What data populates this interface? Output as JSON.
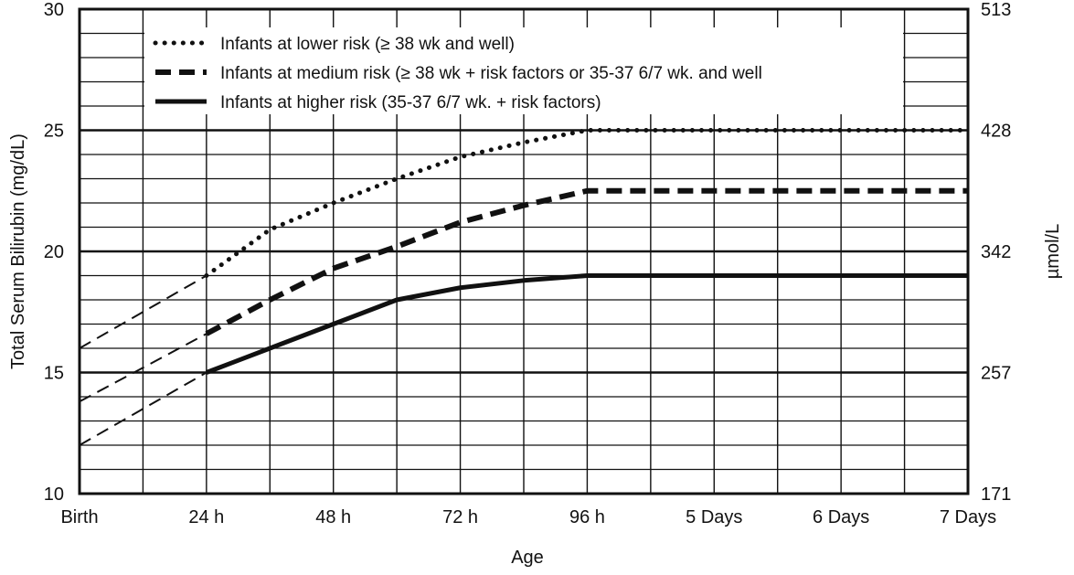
{
  "chart_data": {
    "type": "line",
    "title": "",
    "xlabel": "Age",
    "ylabel": "Total Serum Bilirubin (mg/dL)",
    "ylabel_right": "µmol/L",
    "x_unit": "hours after birth",
    "xlim": [
      0,
      168
    ],
    "ylim": [
      10,
      30
    ],
    "x_ticks": [
      {
        "x": 0,
        "label": "Birth"
      },
      {
        "x": 24,
        "label": "24 h"
      },
      {
        "x": 48,
        "label": "48 h"
      },
      {
        "x": 72,
        "label": "72 h"
      },
      {
        "x": 96,
        "label": "96 h"
      },
      {
        "x": 120,
        "label": "5 Days"
      },
      {
        "x": 144,
        "label": "6 Days"
      },
      {
        "x": 168,
        "label": "7 Days"
      }
    ],
    "y_ticks_left": [
      {
        "y": 10,
        "label": "10"
      },
      {
        "y": 15,
        "label": "15"
      },
      {
        "y": 20,
        "label": "20"
      },
      {
        "y": 25,
        "label": "25"
      },
      {
        "y": 30,
        "label": "30"
      }
    ],
    "y_ticks_right": [
      {
        "y": 10,
        "label": "171"
      },
      {
        "y": 15,
        "label": "257"
      },
      {
        "y": 20,
        "label": "342"
      },
      {
        "y": 25,
        "label": "428"
      },
      {
        "y": 30,
        "label": "513"
      }
    ],
    "grid": true,
    "legend_position": "top-left",
    "series": [
      {
        "name": "Infants at lower risk (≥ 38 wk and well)",
        "style": "dotted",
        "points": [
          [
            24,
            19.0
          ],
          [
            36,
            20.9
          ],
          [
            48,
            22.0
          ],
          [
            60,
            23.0
          ],
          [
            72,
            23.9
          ],
          [
            84,
            24.5
          ],
          [
            96,
            25.0
          ],
          [
            120,
            25.0
          ],
          [
            144,
            25.0
          ],
          [
            168,
            25.0
          ]
        ],
        "extrapolation": [
          [
            0,
            16.0
          ],
          [
            24,
            19.0
          ]
        ]
      },
      {
        "name": "Infants at medium risk (≥ 38 wk + risk factors or 35-37 6/7 wk. and well",
        "style": "dashed",
        "points": [
          [
            24,
            16.6
          ],
          [
            36,
            18.0
          ],
          [
            48,
            19.3
          ],
          [
            60,
            20.2
          ],
          [
            72,
            21.2
          ],
          [
            84,
            21.9
          ],
          [
            96,
            22.5
          ],
          [
            120,
            22.5
          ],
          [
            144,
            22.5
          ],
          [
            168,
            22.5
          ]
        ],
        "extrapolation": [
          [
            0,
            13.8
          ],
          [
            24,
            16.6
          ]
        ]
      },
      {
        "name": "Infants at higher risk (35-37 6/7 wk. + risk factors)",
        "style": "solid",
        "points": [
          [
            24,
            15.0
          ],
          [
            36,
            16.0
          ],
          [
            48,
            17.0
          ],
          [
            60,
            18.0
          ],
          [
            72,
            18.5
          ],
          [
            84,
            18.8
          ],
          [
            96,
            19.0
          ],
          [
            120,
            19.0
          ],
          [
            144,
            19.0
          ],
          [
            168,
            19.0
          ]
        ],
        "extrapolation": [
          [
            0,
            12.0
          ],
          [
            24,
            15.0
          ]
        ]
      }
    ]
  }
}
